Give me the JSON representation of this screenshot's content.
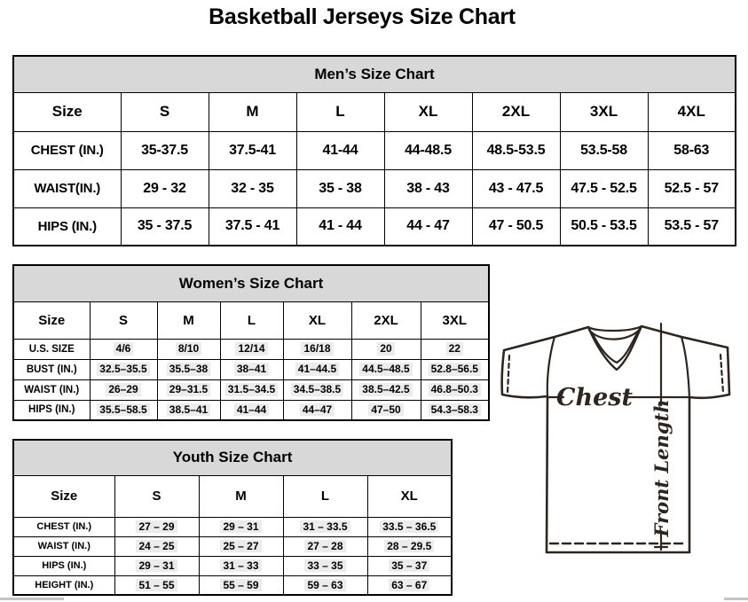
{
  "page_title": "Basketball Jerseys Size Chart",
  "tables": {
    "men": {
      "title": "Men’s Size Chart",
      "size_header": [
        "Size",
        "S",
        "M",
        "L",
        "XL",
        "2XL",
        "3XL",
        "4XL"
      ],
      "rows": [
        {
          "label": "CHEST (IN.)",
          "values": [
            "35-37.5",
            "37.5-41",
            "41-44",
            "44-48.5",
            "48.5-53.5",
            "53.5-58",
            "58-63"
          ]
        },
        {
          "label": "WAIST(IN.)",
          "values": [
            "29 - 32",
            "32 - 35",
            "35 - 38",
            "38 - 43",
            "43 - 47.5",
            "47.5 - 52.5",
            "52.5 - 57"
          ]
        },
        {
          "label": "HIPS (IN.)",
          "values": [
            "35 - 37.5",
            "37.5 - 41",
            "41 - 44",
            "44 - 47",
            "47 - 50.5",
            "50.5 - 53.5",
            "53.5 - 57"
          ]
        }
      ]
    },
    "women": {
      "title": "Women’s Size Chart",
      "size_header": [
        "Size",
        "S",
        "M",
        "L",
        "XL",
        "2XL",
        "3XL"
      ],
      "rows": [
        {
          "label": "U.S. SIZE",
          "values": [
            "4/6",
            "8/10",
            "12/14",
            "16/18",
            "20",
            "22"
          ]
        },
        {
          "label": "BUST (IN.)",
          "values": [
            "32.5–35.5",
            "35.5–38",
            "38–41",
            "41–44.5",
            "44.5–48.5",
            "52.8–56.5"
          ]
        },
        {
          "label": "WAIST (IN.)",
          "values": [
            "26–29",
            "29–31.5",
            "31.5–34.5",
            "34.5–38.5",
            "38.5–42.5",
            "46.8–50.3"
          ]
        },
        {
          "label": "HIPS (IN.)",
          "values": [
            "35.5–58.5",
            "38.5–41",
            "41–44",
            "44–47",
            "47–50",
            "54.3–58.3"
          ]
        }
      ]
    },
    "youth": {
      "title": "Youth Size Chart",
      "size_header": [
        "Size",
        "S",
        "M",
        "L",
        "XL"
      ],
      "rows": [
        {
          "label": "CHEST (IN.)",
          "values": [
            "27 – 29",
            "29 – 31",
            "31 – 33.5",
            "33.5 – 36.5"
          ]
        },
        {
          "label": "WAIST (IN.)",
          "values": [
            "24 – 25",
            "25 – 27",
            "27 – 28",
            "28 – 29.5"
          ]
        },
        {
          "label": "HIPS (IN.)",
          "values": [
            "29 – 31",
            "31 – 33",
            "33 – 35",
            "35 – 37"
          ]
        },
        {
          "label": "HEIGHT (IN.)",
          "values": [
            "51 – 55",
            "55 – 59",
            "59 – 63",
            "63 – 67"
          ]
        }
      ]
    }
  },
  "diagram": {
    "chest_label": "Chest",
    "front_length_label": "Front Length"
  },
  "colors": {
    "header_fill": "#d8d8d8",
    "value_highlight": "#ececec",
    "jersey_line": "#2e251f",
    "scrollbar": "#c4c4c4"
  }
}
